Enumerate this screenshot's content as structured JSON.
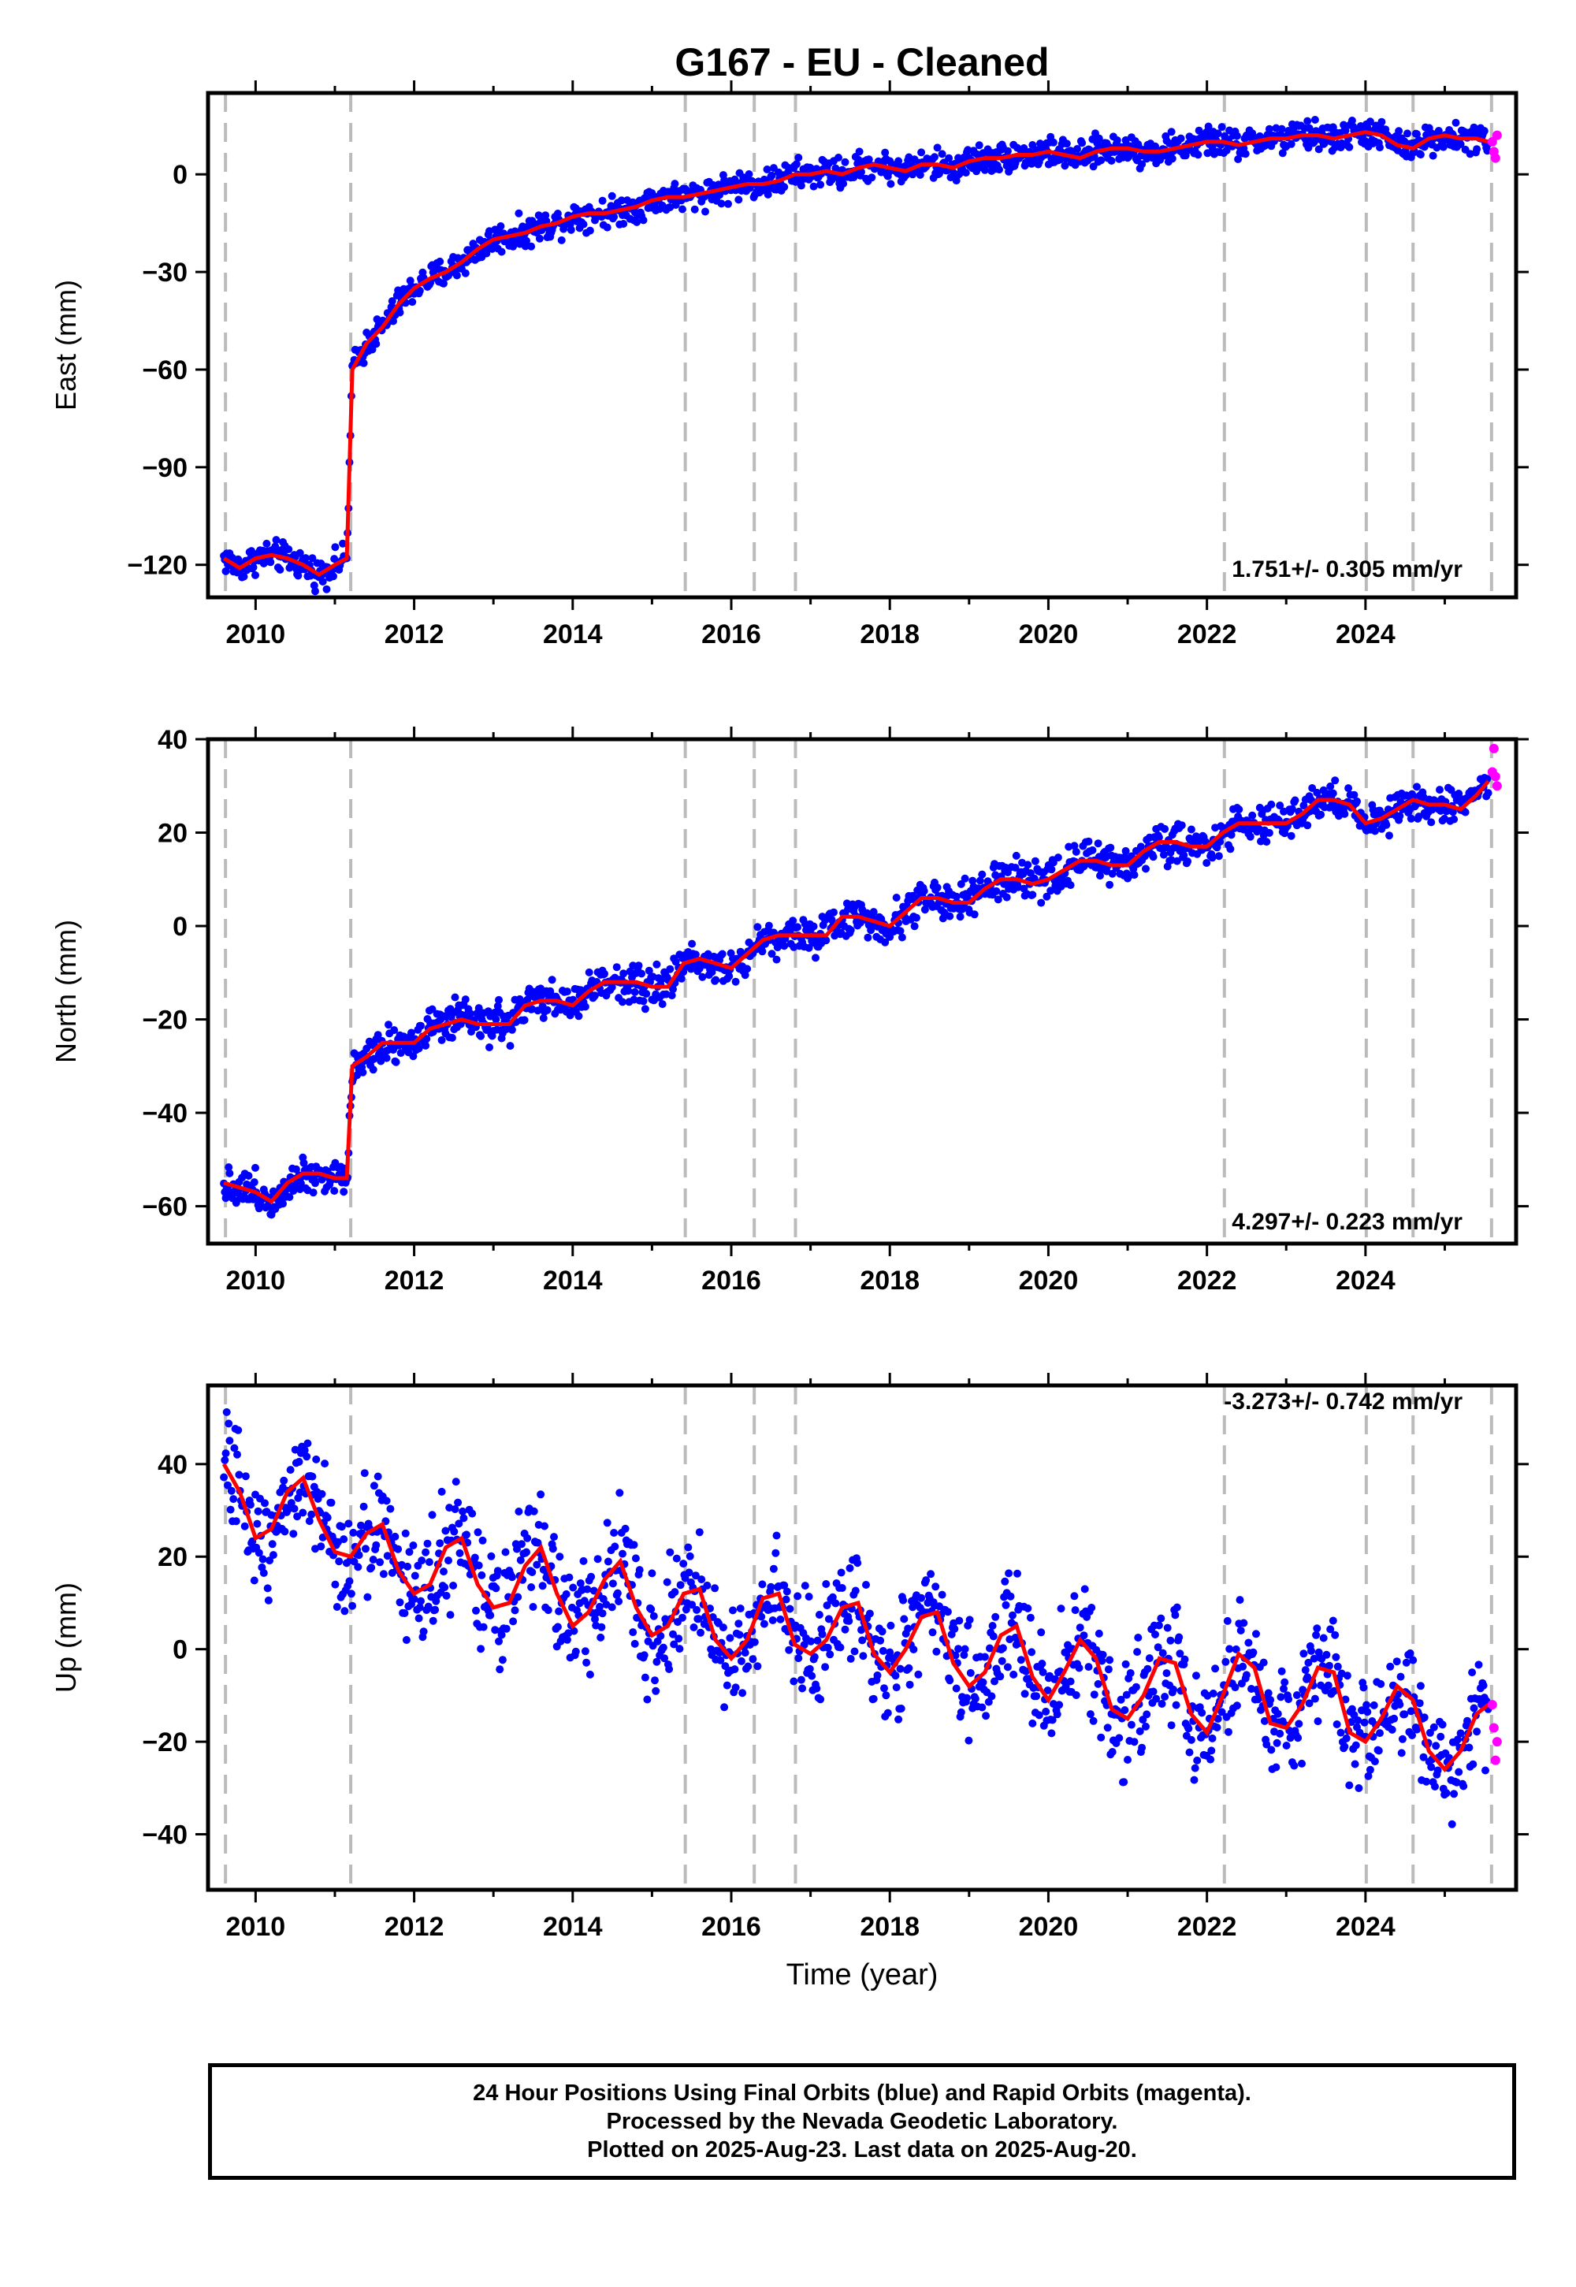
{
  "title": "G167  - EU - Cleaned",
  "xlabel": "Time (year)",
  "footer": {
    "line1": "24 Hour Positions Using Final Orbits (blue) and Rapid Orbits (magenta).",
    "line2": "Processed by the Nevada Geodetic Laboratory.",
    "line3": "Plotted on 2025-Aug-23. Last data on 2025-Aug-20."
  },
  "colors": {
    "final_orbits": "#0000ff",
    "rapid_orbits": "#ff00ff",
    "model": "#ff0000",
    "event_lines": "#bbbbbb"
  },
  "chart_data": [
    {
      "type": "scatter",
      "panel": "east",
      "ylabel": "East (mm)",
      "rate_label": "1.751+/- 0.305 mm/yr",
      "xlim": [
        2009.4,
        2025.9
      ],
      "ylim": [
        -130,
        25
      ],
      "xticks": [
        2010,
        2012,
        2014,
        2016,
        2018,
        2020,
        2022,
        2024
      ],
      "yticks": [
        0,
        -30,
        -60,
        -90,
        -120
      ],
      "event_lines": [
        2009.62,
        2011.2,
        2015.42,
        2016.29,
        2016.81,
        2022.22,
        2024.01,
        2024.6,
        2025.59
      ],
      "series": [
        {
          "name": "Final Orbits (blue)",
          "x": [
            2009.6,
            2009.8,
            2010.0,
            2010.2,
            2010.4,
            2010.6,
            2010.8,
            2011.0,
            2011.15,
            2011.22,
            2011.4,
            2011.6,
            2011.8,
            2012.0,
            2012.2,
            2012.4,
            2012.6,
            2012.8,
            2013.0,
            2013.2,
            2013.4,
            2013.6,
            2013.8,
            2014.0,
            2014.2,
            2014.4,
            2014.6,
            2014.8,
            2015.0,
            2015.2,
            2015.4,
            2015.6,
            2015.8,
            2016.0,
            2016.2,
            2016.4,
            2016.6,
            2016.8,
            2017.0,
            2017.2,
            2017.4,
            2017.6,
            2017.8,
            2018.0,
            2018.2,
            2018.4,
            2018.6,
            2018.8,
            2019.0,
            2019.2,
            2019.4,
            2019.6,
            2019.8,
            2020.0,
            2020.2,
            2020.4,
            2020.6,
            2020.8,
            2021.0,
            2021.2,
            2021.4,
            2021.6,
            2021.8,
            2022.0,
            2022.2,
            2022.4,
            2022.6,
            2022.8,
            2023.0,
            2023.2,
            2023.4,
            2023.6,
            2023.8,
            2024.0,
            2024.2,
            2024.4,
            2024.6,
            2024.8,
            2025.0,
            2025.2,
            2025.4,
            2025.55
          ],
          "y": [
            -118,
            -121,
            -118,
            -117,
            -118,
            -120,
            -123,
            -120,
            -118,
            -60,
            -52,
            -47,
            -40,
            -35,
            -32,
            -30,
            -27,
            -23,
            -20,
            -19,
            -18,
            -16,
            -15,
            -13,
            -12,
            -12,
            -11,
            -10,
            -8,
            -7,
            -7,
            -6,
            -5,
            -4,
            -3,
            -3,
            -2,
            0,
            0,
            1,
            0,
            2,
            3,
            2,
            1,
            3,
            3,
            2,
            4,
            5,
            5,
            6,
            6,
            7,
            6,
            5,
            7,
            8,
            8,
            7,
            7,
            8,
            9,
            10,
            10,
            9,
            10,
            11,
            11,
            12,
            12,
            11,
            12,
            13,
            12,
            9,
            8,
            11,
            12,
            11,
            11,
            10
          ]
        },
        {
          "name": "Rapid Orbits (magenta)",
          "x": [
            2025.6,
            2025.62,
            2025.64,
            2025.66
          ],
          "y": [
            10,
            7,
            5,
            12
          ]
        }
      ]
    },
    {
      "type": "scatter",
      "panel": "north",
      "ylabel": "North (mm)",
      "rate_label": "4.297+/- 0.223 mm/yr",
      "xlim": [
        2009.4,
        2025.9
      ],
      "ylim": [
        -68,
        40
      ],
      "xticks": [
        2010,
        2012,
        2014,
        2016,
        2018,
        2020,
        2022,
        2024
      ],
      "yticks": [
        40,
        20,
        0,
        -20,
        -40,
        -60
      ],
      "event_lines": [
        2009.62,
        2011.2,
        2015.42,
        2016.29,
        2016.81,
        2022.22,
        2024.01,
        2024.6,
        2025.59
      ],
      "series": [
        {
          "name": "Final Orbits (blue)",
          "x": [
            2009.6,
            2009.8,
            2010.0,
            2010.2,
            2010.4,
            2010.6,
            2010.8,
            2011.0,
            2011.15,
            2011.22,
            2011.4,
            2011.6,
            2011.8,
            2012.0,
            2012.2,
            2012.4,
            2012.6,
            2012.8,
            2013.0,
            2013.2,
            2013.4,
            2013.6,
            2013.8,
            2014.0,
            2014.2,
            2014.4,
            2014.6,
            2014.8,
            2015.0,
            2015.2,
            2015.4,
            2015.6,
            2015.8,
            2016.0,
            2016.2,
            2016.4,
            2016.6,
            2016.8,
            2017.0,
            2017.2,
            2017.4,
            2017.6,
            2017.8,
            2018.0,
            2018.2,
            2018.4,
            2018.6,
            2018.8,
            2019.0,
            2019.2,
            2019.4,
            2019.6,
            2019.8,
            2020.0,
            2020.2,
            2020.4,
            2020.6,
            2020.8,
            2021.0,
            2021.2,
            2021.4,
            2021.6,
            2021.8,
            2022.0,
            2022.2,
            2022.4,
            2022.6,
            2022.8,
            2023.0,
            2023.2,
            2023.4,
            2023.6,
            2023.8,
            2024.0,
            2024.2,
            2024.4,
            2024.6,
            2024.8,
            2025.0,
            2025.2,
            2025.4,
            2025.55
          ],
          "y": [
            -55,
            -56,
            -57,
            -59,
            -55,
            -53,
            -53,
            -54,
            -54,
            -30,
            -28,
            -25,
            -25,
            -25,
            -22,
            -21,
            -20,
            -21,
            -21,
            -21,
            -17,
            -16,
            -16,
            -17,
            -14,
            -12,
            -12,
            -12,
            -13,
            -13,
            -8,
            -7,
            -8,
            -9,
            -6,
            -3,
            -2,
            -2,
            -2,
            -2,
            2,
            2,
            1,
            0,
            3,
            6,
            6,
            5,
            5,
            8,
            10,
            10,
            9,
            10,
            12,
            14,
            14,
            13,
            13,
            16,
            18,
            18,
            17,
            17,
            20,
            22,
            22,
            22,
            22,
            24,
            27,
            27,
            26,
            22,
            23,
            25,
            27,
            26,
            26,
            25,
            28,
            31
          ]
        },
        {
          "name": "Rapid Orbits (magenta)",
          "x": [
            2025.6,
            2025.62,
            2025.64,
            2025.66
          ],
          "y": [
            33,
            38,
            32,
            30
          ]
        }
      ]
    },
    {
      "type": "scatter",
      "panel": "up",
      "ylabel": "Up (mm)",
      "rate_label": "-3.273+/- 0.742 mm/yr",
      "xlim": [
        2009.4,
        2025.9
      ],
      "ylim": [
        -52,
        57
      ],
      "xticks": [
        2010,
        2012,
        2014,
        2016,
        2018,
        2020,
        2022,
        2024
      ],
      "yticks": [
        40,
        20,
        0,
        -20,
        -40
      ],
      "event_lines": [
        2009.62,
        2011.2,
        2015.42,
        2016.29,
        2016.81,
        2022.22,
        2024.01,
        2024.6,
        2025.59
      ],
      "series": [
        {
          "name": "Final Orbits (blue)",
          "x": [
            2009.6,
            2009.8,
            2010.0,
            2010.2,
            2010.4,
            2010.6,
            2010.8,
            2011.0,
            2011.2,
            2011.4,
            2011.6,
            2011.8,
            2012.0,
            2012.2,
            2012.4,
            2012.6,
            2012.8,
            2013.0,
            2013.2,
            2013.4,
            2013.6,
            2013.8,
            2014.0,
            2014.2,
            2014.4,
            2014.6,
            2014.8,
            2015.0,
            2015.2,
            2015.4,
            2015.6,
            2015.8,
            2016.0,
            2016.2,
            2016.4,
            2016.6,
            2016.8,
            2017.0,
            2017.2,
            2017.4,
            2017.6,
            2017.8,
            2018.0,
            2018.2,
            2018.4,
            2018.6,
            2018.8,
            2019.0,
            2019.2,
            2019.4,
            2019.6,
            2019.8,
            2020.0,
            2020.2,
            2020.4,
            2020.6,
            2020.8,
            2021.0,
            2021.2,
            2021.4,
            2021.6,
            2021.8,
            2022.0,
            2022.2,
            2022.4,
            2022.6,
            2022.8,
            2023.0,
            2023.2,
            2023.4,
            2023.6,
            2023.8,
            2024.0,
            2024.2,
            2024.4,
            2024.6,
            2024.8,
            2025.0,
            2025.2,
            2025.4,
            2025.55
          ],
          "y": [
            40,
            34,
            24,
            26,
            34,
            37,
            28,
            21,
            20,
            25,
            27,
            17,
            12,
            14,
            22,
            24,
            14,
            9,
            10,
            18,
            22,
            12,
            5,
            8,
            15,
            19,
            9,
            3,
            5,
            12,
            13,
            2,
            -2,
            2,
            11,
            12,
            1,
            -1,
            2,
            9,
            10,
            -1,
            -5,
            0,
            7,
            8,
            -3,
            -8,
            -5,
            3,
            5,
            -6,
            -11,
            -5,
            2,
            -2,
            -13,
            -15,
            -10,
            -2,
            -3,
            -14,
            -18,
            -10,
            -1,
            -4,
            -16,
            -17,
            -12,
            -4,
            -5,
            -18,
            -20,
            -15,
            -8,
            -11,
            -22,
            -26,
            -22,
            -14,
            -12
          ]
        },
        {
          "name": "Rapid Orbits (magenta)",
          "x": [
            2025.6,
            2025.62,
            2025.64,
            2025.66
          ],
          "y": [
            -12,
            -17,
            -24,
            -20
          ]
        }
      ]
    }
  ]
}
